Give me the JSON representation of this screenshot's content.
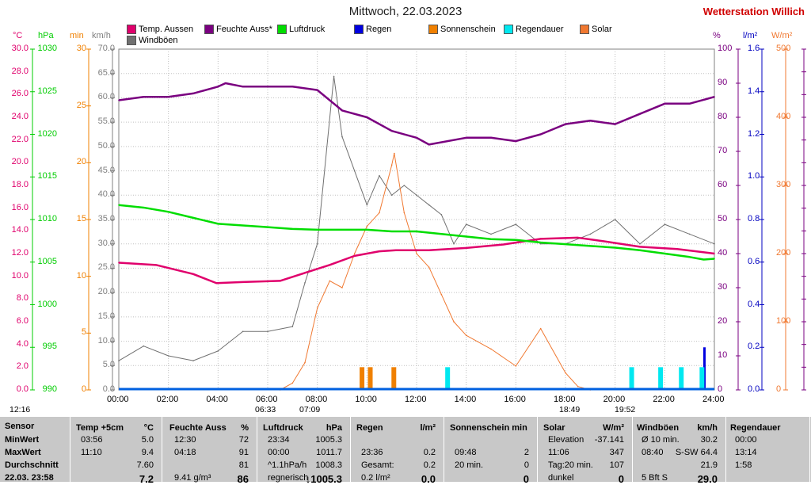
{
  "title": "Mittwoch, 22.03.2023",
  "station": "Wetterstation Willich",
  "legend": [
    {
      "name": "Temp. Aussen",
      "color": "#e0006c"
    },
    {
      "name": "Feuchte Auss*",
      "color": "#7a0080"
    },
    {
      "name": "Luftdruck",
      "color": "#00dd00"
    },
    {
      "name": "Regen",
      "color": "#0000e0"
    },
    {
      "name": "Sonnenschein",
      "color": "#f08000"
    },
    {
      "name": "Regendauer",
      "color": "#00e8f0"
    },
    {
      "name": "Solar",
      "color": "#f07830"
    },
    {
      "name": "Windböen",
      "color": "#707070"
    }
  ],
  "axes": {
    "temp_unit": "°C",
    "pres_unit": "hPa",
    "sun_unit": "min",
    "wind_unit": "km/h",
    "hum_unit": "%",
    "rain_unit": "l/m²",
    "solar_unit": "W/m²",
    "temp_ticks": [
      "30.0",
      "28.0",
      "26.0",
      "24.0",
      "22.0",
      "20.0",
      "18.0",
      "16.0",
      "14.0",
      "12.0",
      "10.0",
      "8.0",
      "6.0",
      "4.0",
      "2.0",
      "0.0"
    ],
    "pres_ticks": [
      "1030",
      "1025",
      "1020",
      "1015",
      "1010",
      "1005",
      "1000",
      "995",
      "990"
    ],
    "sun_ticks": [
      "30",
      "25",
      "20",
      "15",
      "10",
      "5",
      "0"
    ],
    "wind_ticks": [
      "70.0",
      "65.0",
      "60.0",
      "55.0",
      "50.0",
      "45.0",
      "40.0",
      "35.0",
      "30.0",
      "25.0",
      "20.0",
      "15.0",
      "10.0",
      "5.0",
      "0.0"
    ],
    "hum_ticks": [
      "100",
      "90",
      "80",
      "70",
      "60",
      "50",
      "40",
      "30",
      "20",
      "10",
      "0"
    ],
    "rain_ticks": [
      "1.6",
      "1.4",
      "1.2",
      "1.0",
      "0.8",
      "0.6",
      "0.4",
      "0.2",
      "0.0"
    ],
    "solar_ticks": [
      "500",
      "400",
      "300",
      "200",
      "100",
      "0"
    ],
    "x_ticks": [
      "00:00",
      "02:00",
      "04:00",
      "06:00",
      "08:00",
      "10:00",
      "12:00",
      "14:00",
      "16:00",
      "18:00",
      "20:00",
      "22:00",
      "24:00"
    ]
  },
  "sun_times": {
    "moonrise": "12:16",
    "sunrise": "06:33",
    "sunrise2": "07:09",
    "sunset": "18:49",
    "sunset2": "19:52"
  },
  "chart_data": {
    "type": "line",
    "title": "Mittwoch, 22.03.2023",
    "x_range": [
      "00:00",
      "24:00"
    ],
    "series": [
      {
        "name": "Temp. Aussen",
        "axis": "°C",
        "ylim": [
          0,
          30
        ],
        "x": [
          "00:00",
          "01:30",
          "03:00",
          "03:56",
          "05:00",
          "06:30",
          "07:30",
          "08:30",
          "09:30",
          "10:30",
          "11:10",
          "12:30",
          "14:00",
          "15:30",
          "17:00",
          "18:30",
          "19:30",
          "21:00",
          "22:30",
          "24:00"
        ],
        "values": [
          11.2,
          11.0,
          10.2,
          9.4,
          9.5,
          9.6,
          10.3,
          11.0,
          11.8,
          12.2,
          12.3,
          12.3,
          12.5,
          12.8,
          13.3,
          13.4,
          13.1,
          12.6,
          12.4,
          12.0
        ]
      },
      {
        "name": "Feuchte Auss*",
        "axis": "%",
        "ylim": [
          0,
          100
        ],
        "x": [
          "00:00",
          "01:00",
          "02:00",
          "03:00",
          "04:00",
          "04:18",
          "05:00",
          "06:00",
          "07:00",
          "08:00",
          "09:00",
          "10:00",
          "11:00",
          "12:00",
          "12:30",
          "14:00",
          "15:00",
          "16:00",
          "17:00",
          "18:00",
          "19:00",
          "20:00",
          "21:00",
          "22:00",
          "23:00",
          "24:00"
        ],
        "values": [
          85,
          86,
          86,
          87,
          89,
          90,
          89,
          89,
          89,
          88,
          82,
          80,
          76,
          74,
          72,
          74,
          74,
          73,
          75,
          78,
          79,
          78,
          81,
          84,
          84,
          86
        ]
      },
      {
        "name": "Luftdruck",
        "axis": "hPa",
        "ylim": [
          990,
          1030
        ],
        "x": [
          "00:00",
          "01:00",
          "02:00",
          "03:00",
          "04:00",
          "05:00",
          "06:00",
          "07:00",
          "08:00",
          "09:00",
          "10:00",
          "11:00",
          "12:00",
          "13:00",
          "14:00",
          "15:00",
          "16:00",
          "17:00",
          "18:00",
          "19:00",
          "20:00",
          "21:00",
          "22:00",
          "23:00",
          "23:34",
          "24:00"
        ],
        "values": [
          1011.7,
          1011.4,
          1010.9,
          1010.2,
          1009.5,
          1009.3,
          1009.1,
          1008.9,
          1008.8,
          1008.8,
          1008.8,
          1008.6,
          1008.6,
          1008.3,
          1008.0,
          1007.7,
          1007.6,
          1007.3,
          1007.1,
          1006.9,
          1006.7,
          1006.4,
          1006.0,
          1005.6,
          1005.3,
          1005.4
        ]
      },
      {
        "name": "Windböen",
        "axis": "km/h",
        "ylim": [
          0,
          70
        ],
        "x": [
          "00:00",
          "01:00",
          "02:00",
          "03:00",
          "04:00",
          "05:00",
          "06:00",
          "07:00",
          "07:30",
          "08:00",
          "08:40",
          "09:00",
          "09:30",
          "10:00",
          "10:30",
          "11:00",
          "11:30",
          "12:00",
          "12:30",
          "13:00",
          "13:30",
          "14:00",
          "15:00",
          "16:00",
          "17:00",
          "18:00",
          "19:00",
          "20:00",
          "21:00",
          "22:00",
          "23:00",
          "24:00"
        ],
        "values": [
          6,
          9,
          7,
          6,
          8,
          12,
          12,
          13,
          22,
          30,
          64.4,
          52,
          45,
          38,
          44,
          40,
          42,
          40,
          38,
          36,
          30,
          34,
          32,
          34,
          30,
          30,
          32,
          35,
          30,
          34,
          32,
          30
        ]
      },
      {
        "name": "Solar",
        "axis": "W/m²",
        "ylim": [
          0,
          500
        ],
        "x": [
          "06:30",
          "07:00",
          "07:30",
          "08:00",
          "08:30",
          "09:00",
          "09:30",
          "10:00",
          "10:30",
          "11:00",
          "11:06",
          "11:30",
          "12:00",
          "12:30",
          "13:00",
          "13:30",
          "14:00",
          "15:00",
          "16:00",
          "17:00",
          "18:00",
          "18:30",
          "19:00"
        ],
        "values": [
          0,
          10,
          40,
          120,
          160,
          150,
          200,
          240,
          260,
          330,
          347,
          260,
          200,
          180,
          140,
          100,
          80,
          60,
          35,
          90,
          25,
          5,
          0
        ]
      },
      {
        "name": "Regen",
        "axis": "l/m²",
        "ylim": [
          0,
          1.6
        ],
        "x": [
          "23:36"
        ],
        "values": [
          0.2
        ]
      },
      {
        "name": "Sonnenschein",
        "axis": "min",
        "type": "bar",
        "x": [
          "09:48",
          "10:08",
          "11:05"
        ],
        "values": [
          2,
          2,
          2
        ]
      },
      {
        "name": "Regendauer",
        "axis": "min",
        "type": "bar",
        "x": [
          "13:15",
          "20:40",
          "21:50",
          "22:40",
          "23:30"
        ],
        "values": [
          2,
          2,
          2,
          2,
          2
        ]
      }
    ]
  },
  "table": {
    "sensor": {
      "hd": "Sensor",
      "rows": [
        "MinWert",
        "MaxWert",
        "Durchschnitt",
        "22.03. 23:58"
      ]
    },
    "temp": {
      "hd": "Temp +5cm",
      "unit": "°C",
      "rows": [
        [
          "03:56",
          "5.0"
        ],
        [
          "11:10",
          "9.4"
        ],
        [
          "",
          "7.60"
        ],
        [
          "",
          "7.2"
        ]
      ]
    },
    "hum": {
      "hd": "Feuchte Auss",
      "unit": "%",
      "rows": [
        [
          "12:30",
          "72"
        ],
        [
          "04:18",
          "91"
        ],
        [
          "",
          "81"
        ],
        [
          "9.41 g/m³",
          "86"
        ]
      ]
    },
    "pres": {
      "hd": "Luftdruck",
      "unit": "hPa",
      "rows": [
        [
          "23:34",
          "1005.3"
        ],
        [
          "00:00",
          "1011.7"
        ],
        [
          "^1.1hPa/h",
          "1008.3"
        ],
        [
          "regnerisch",
          "↓1005.3"
        ]
      ]
    },
    "rain": {
      "hd": "Regen",
      "unit": "l/m²",
      "rows": [
        [
          "",
          ""
        ],
        [
          "23:36",
          "0.2"
        ],
        [
          "Gesamt:",
          "0.2"
        ],
        [
          "0.2 l/m²",
          "0.0"
        ]
      ]
    },
    "sun": {
      "hd": "Sonnenschein min",
      "rows": [
        [
          "",
          ""
        ],
        [
          "09:48",
          "2"
        ],
        [
          "20 min.",
          "0"
        ],
        [
          "",
          "0"
        ]
      ]
    },
    "solar": {
      "hd": "Solar",
      "unit": "W/m²",
      "rows": [
        [
          "Elevation",
          "-37.141"
        ],
        [
          "11:06",
          "347"
        ],
        [
          "Tag:20 min.",
          "107"
        ],
        [
          "dunkel",
          "0"
        ]
      ]
    },
    "wind": {
      "hd": "Windböen",
      "unit": "km/h",
      "rows": [
        [
          "Ø 10 min.",
          "30.2"
        ],
        [
          "08:40",
          "S-SW 64.4"
        ],
        [
          "",
          "21.9"
        ],
        [
          "5 Bft S",
          "29.0"
        ]
      ]
    },
    "raindur": {
      "hd": "Regendauer",
      "rows": [
        "00:00",
        "13:14",
        "1:58",
        ""
      ]
    }
  }
}
